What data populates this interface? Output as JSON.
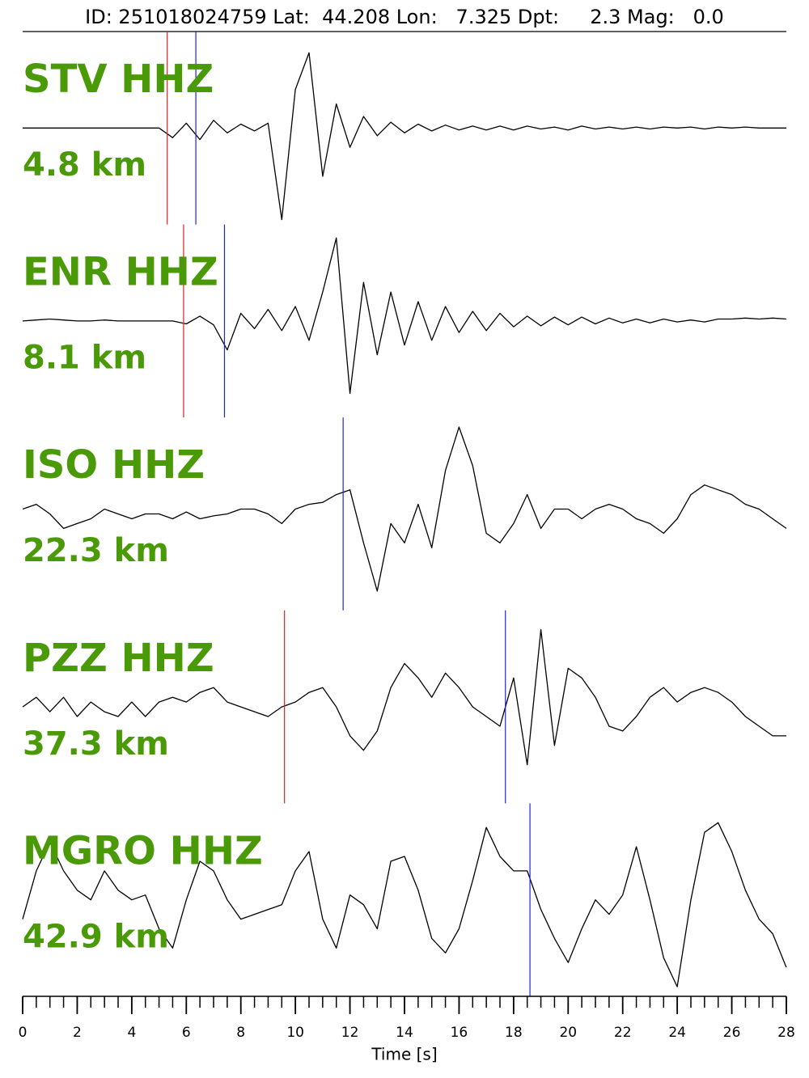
{
  "chart_data": {
    "type": "line",
    "title": "ID: 251018024759 Lat:  44.208 Lon:   7.325 Dpt:     2.3 Mag:   0.0",
    "xlabel": "Time [s]",
    "xlim": [
      0,
      28
    ],
    "xticks": [
      0,
      2,
      4,
      6,
      8,
      10,
      12,
      14,
      16,
      18,
      20,
      22,
      24,
      26,
      28
    ],
    "xminorticks": [
      0,
      0.5,
      1,
      1.5,
      2,
      2.5,
      3,
      3.5,
      4,
      4.5,
      5,
      5.5,
      6,
      6.5,
      7,
      7.5,
      8,
      8.5,
      9,
      9.5,
      10,
      10.5,
      11,
      11.5,
      12,
      12.5,
      13,
      13.5,
      14,
      14.5,
      15,
      15.5,
      16,
      16.5,
      17,
      17.5,
      18,
      18.5,
      19,
      19.5,
      20,
      20.5,
      21,
      21.5,
      22,
      22.5,
      23,
      23.5,
      24,
      24.5,
      25,
      25.5,
      26,
      26.5,
      27,
      27.5,
      28
    ],
    "ylim": [
      -1,
      1
    ],
    "x": [
      0,
      0.5,
      1,
      1.5,
      2,
      2.5,
      3,
      3.5,
      4,
      4.5,
      5,
      5.5,
      6,
      6.5,
      7,
      7.5,
      8,
      8.5,
      9,
      9.5,
      10,
      10.5,
      11,
      11.5,
      12,
      12.5,
      13,
      13.5,
      14,
      14.5,
      15,
      15.5,
      16,
      16.5,
      17,
      17.5,
      18,
      18.5,
      19,
      19.5,
      20,
      20.5,
      21,
      21.5,
      22,
      22.5,
      23,
      23.5,
      24,
      24.5,
      25,
      25.5,
      26,
      26.5,
      27,
      27.5,
      28
    ],
    "label_color": "#4a9a08",
    "series": [
      {
        "name": "STV HHZ",
        "distance": "4.8 km",
        "color": "#000000",
        "picks": [
          {
            "value": 5.3,
            "color": "#dd2222"
          },
          {
            "value": 6.35,
            "color": "#2222dd"
          }
        ],
        "values": [
          0,
          0,
          0,
          0,
          0,
          0,
          0,
          0,
          0,
          0,
          0,
          -0.1,
          0.05,
          -0.12,
          0.08,
          -0.05,
          0.04,
          -0.03,
          0.05,
          -0.95,
          0.4,
          0.78,
          -0.5,
          0.25,
          -0.2,
          0.12,
          -0.08,
          0.06,
          -0.05,
          0.04,
          -0.03,
          0.03,
          -0.02,
          0.02,
          -0.02,
          0.02,
          -0.02,
          0.02,
          -0.01,
          0.01,
          -0.02,
          0.02,
          -0.01,
          0.01,
          -0.01,
          0.01,
          -0.01,
          0.01,
          0,
          0.01,
          -0.01,
          0.01,
          0,
          0.01,
          0,
          0,
          0
        ]
      },
      {
        "name": "ENR HHZ",
        "distance": "8.1 km",
        "color": "#000000",
        "picks": [
          {
            "value": 5.9,
            "color": "#dd2222"
          },
          {
            "value": 7.4,
            "color": "#2222dd"
          }
        ],
        "values": [
          0,
          0.01,
          0.02,
          0.01,
          0,
          0,
          0.01,
          0,
          0,
          0,
          0,
          0,
          -0.03,
          0.05,
          -0.04,
          -0.3,
          0.08,
          -0.08,
          0.12,
          -0.1,
          0.15,
          -0.2,
          0.3,
          0.86,
          -0.75,
          0.4,
          -0.35,
          0.3,
          -0.25,
          0.2,
          -0.2,
          0.15,
          -0.12,
          0.1,
          -0.1,
          0.08,
          -0.06,
          0.05,
          -0.05,
          0.04,
          -0.04,
          0.04,
          -0.03,
          0.03,
          -0.02,
          0.02,
          -0.02,
          0.02,
          -0.01,
          0.01,
          -0.01,
          0.02,
          0.02,
          0.03,
          0.02,
          0.03,
          0.02
        ]
      },
      {
        "name": "ISO HHZ",
        "distance": "22.3 km",
        "color": "#000000",
        "picks": [
          {
            "value": 11.75,
            "color": "#2222dd"
          }
        ],
        "values": [
          0.05,
          0.1,
          0,
          -0.15,
          -0.1,
          -0.05,
          0.05,
          0,
          -0.05,
          0,
          0,
          -0.05,
          0.02,
          -0.05,
          -0.02,
          0,
          0.05,
          0.05,
          0,
          -0.1,
          0.05,
          0.1,
          0.12,
          0.2,
          0.25,
          -0.3,
          -0.8,
          -0.1,
          -0.3,
          0.1,
          -0.35,
          0.45,
          0.9,
          0.5,
          -0.2,
          -0.3,
          -0.1,
          0.2,
          -0.15,
          0.05,
          0.05,
          -0.05,
          0.05,
          0.1,
          0.05,
          -0.05,
          -0.1,
          -0.2,
          -0.05,
          0.2,
          0.3,
          0.25,
          0.2,
          0.1,
          0.05,
          -0.05,
          -0.15
        ]
      },
      {
        "name": "PZZ HHZ",
        "distance": "37.3 km",
        "color": "#000000",
        "picks": [
          {
            "value": 9.6,
            "color": "#dd2222"
          },
          {
            "value": 17.7,
            "color": "#2222dd"
          }
        ],
        "values": [
          0,
          0.1,
          -0.05,
          0.1,
          -0.1,
          0.05,
          -0.05,
          -0.1,
          0.05,
          -0.1,
          0.05,
          0.1,
          0.05,
          0.15,
          0.2,
          0.05,
          0,
          -0.05,
          -0.1,
          0,
          0.05,
          0.15,
          0.2,
          0,
          -0.3,
          -0.45,
          -0.25,
          0.2,
          0.45,
          0.3,
          0.1,
          0.35,
          0.2,
          0,
          -0.1,
          -0.2,
          0.3,
          -0.6,
          0.8,
          -0.4,
          0.4,
          0.3,
          0.1,
          -0.2,
          -0.25,
          -0.1,
          0.1,
          0.2,
          0.05,
          0.15,
          0.2,
          0.15,
          0.05,
          -0.1,
          -0.2,
          -0.3,
          -0.3
        ]
      },
      {
        "name": "MGRO HHZ",
        "distance": "42.9 km",
        "color": "#000000",
        "picks": [
          {
            "value": 18.6,
            "color": "#2222dd"
          }
        ],
        "values": [
          -0.2,
          0.3,
          0.6,
          0.3,
          0.1,
          0,
          0.3,
          0.1,
          0,
          0.05,
          -0.3,
          -0.5,
          0,
          0.4,
          0.3,
          0,
          -0.2,
          -0.15,
          -0.1,
          -0.05,
          0.3,
          0.5,
          -0.2,
          -0.5,
          0.05,
          -0.05,
          -0.3,
          0.4,
          0.45,
          0.1,
          -0.4,
          -0.55,
          -0.3,
          0.2,
          0.75,
          0.45,
          0.3,
          0.3,
          -0.1,
          -0.4,
          -0.65,
          -0.3,
          0,
          -0.15,
          0.05,
          0.55,
          0,
          -0.6,
          -0.9,
          0,
          0.7,
          0.8,
          0.5,
          0.1,
          -0.2,
          -0.35,
          -0.7
        ]
      }
    ]
  }
}
